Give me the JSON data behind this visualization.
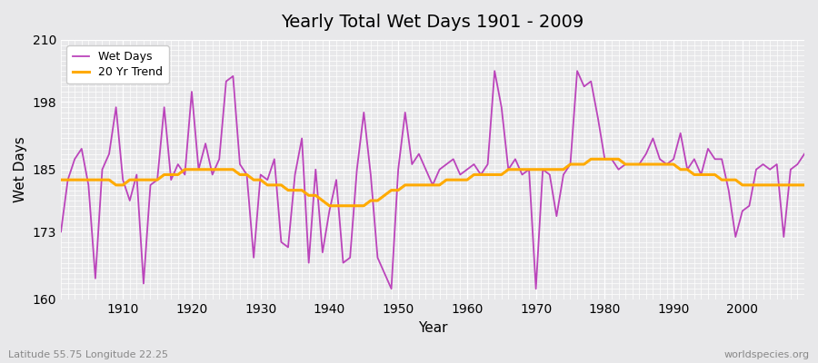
{
  "title": "Yearly Total Wet Days 1901 - 2009",
  "xlabel": "Year",
  "ylabel": "Wet Days",
  "ylim": [
    160,
    210
  ],
  "yticks": [
    160,
    173,
    185,
    198,
    210
  ],
  "xticks": [
    1910,
    1920,
    1930,
    1940,
    1950,
    1960,
    1970,
    1980,
    1990,
    2000
  ],
  "wet_days_color": "#bb44bb",
  "trend_color": "#ffaa00",
  "bg_color": "#e8e8ea",
  "subtitle_left": "Latitude 55.75 Longitude 22.25",
  "subtitle_right": "worldspecies.org",
  "years": [
    1901,
    1902,
    1903,
    1904,
    1905,
    1906,
    1907,
    1908,
    1909,
    1910,
    1911,
    1912,
    1913,
    1914,
    1915,
    1916,
    1917,
    1918,
    1919,
    1920,
    1921,
    1922,
    1923,
    1924,
    1925,
    1926,
    1927,
    1928,
    1929,
    1930,
    1931,
    1932,
    1933,
    1934,
    1935,
    1936,
    1937,
    1938,
    1939,
    1940,
    1941,
    1942,
    1943,
    1944,
    1945,
    1946,
    1947,
    1948,
    1949,
    1950,
    1951,
    1952,
    1953,
    1954,
    1955,
    1956,
    1957,
    1958,
    1959,
    1960,
    1961,
    1962,
    1963,
    1964,
    1965,
    1966,
    1967,
    1968,
    1969,
    1970,
    1971,
    1972,
    1973,
    1974,
    1975,
    1976,
    1977,
    1978,
    1979,
    1980,
    1981,
    1982,
    1983,
    1984,
    1985,
    1986,
    1987,
    1988,
    1989,
    1990,
    1991,
    1992,
    1993,
    1994,
    1995,
    1996,
    1997,
    1998,
    1999,
    2000,
    2001,
    2002,
    2003,
    2004,
    2005,
    2006,
    2007,
    2008,
    2009
  ],
  "wet_days": [
    173,
    183,
    187,
    189,
    182,
    164,
    185,
    188,
    197,
    183,
    179,
    184,
    163,
    182,
    183,
    197,
    183,
    186,
    184,
    200,
    185,
    190,
    184,
    187,
    202,
    203,
    186,
    184,
    168,
    184,
    183,
    187,
    171,
    170,
    184,
    191,
    167,
    185,
    169,
    177,
    183,
    167,
    168,
    185,
    196,
    184,
    168,
    165,
    162,
    185,
    196,
    186,
    188,
    185,
    182,
    185,
    186,
    187,
    184,
    185,
    186,
    184,
    186,
    204,
    197,
    185,
    187,
    184,
    185,
    162,
    185,
    184,
    176,
    184,
    186,
    204,
    201,
    202,
    195,
    187,
    187,
    185,
    186,
    186,
    186,
    188,
    191,
    187,
    186,
    187,
    192,
    185,
    187,
    184,
    189,
    187,
    187,
    181,
    172,
    177,
    178,
    185,
    186,
    185,
    186,
    172,
    185,
    186,
    188
  ],
  "trend": [
    183,
    183,
    183,
    183,
    183,
    183,
    183,
    183,
    182,
    182,
    183,
    183,
    183,
    183,
    183,
    184,
    184,
    184,
    185,
    185,
    185,
    185,
    185,
    185,
    185,
    185,
    184,
    184,
    183,
    183,
    182,
    182,
    182,
    181,
    181,
    181,
    180,
    180,
    179,
    178,
    178,
    178,
    178,
    178,
    178,
    179,
    179,
    180,
    181,
    181,
    182,
    182,
    182,
    182,
    182,
    182,
    183,
    183,
    183,
    183,
    184,
    184,
    184,
    184,
    184,
    185,
    185,
    185,
    185,
    185,
    185,
    185,
    185,
    185,
    186,
    186,
    186,
    187,
    187,
    187,
    187,
    187,
    186,
    186,
    186,
    186,
    186,
    186,
    186,
    186,
    185,
    185,
    184,
    184,
    184,
    184,
    183,
    183,
    183,
    182,
    182,
    182,
    182,
    182,
    182,
    182,
    182,
    182,
    182
  ]
}
